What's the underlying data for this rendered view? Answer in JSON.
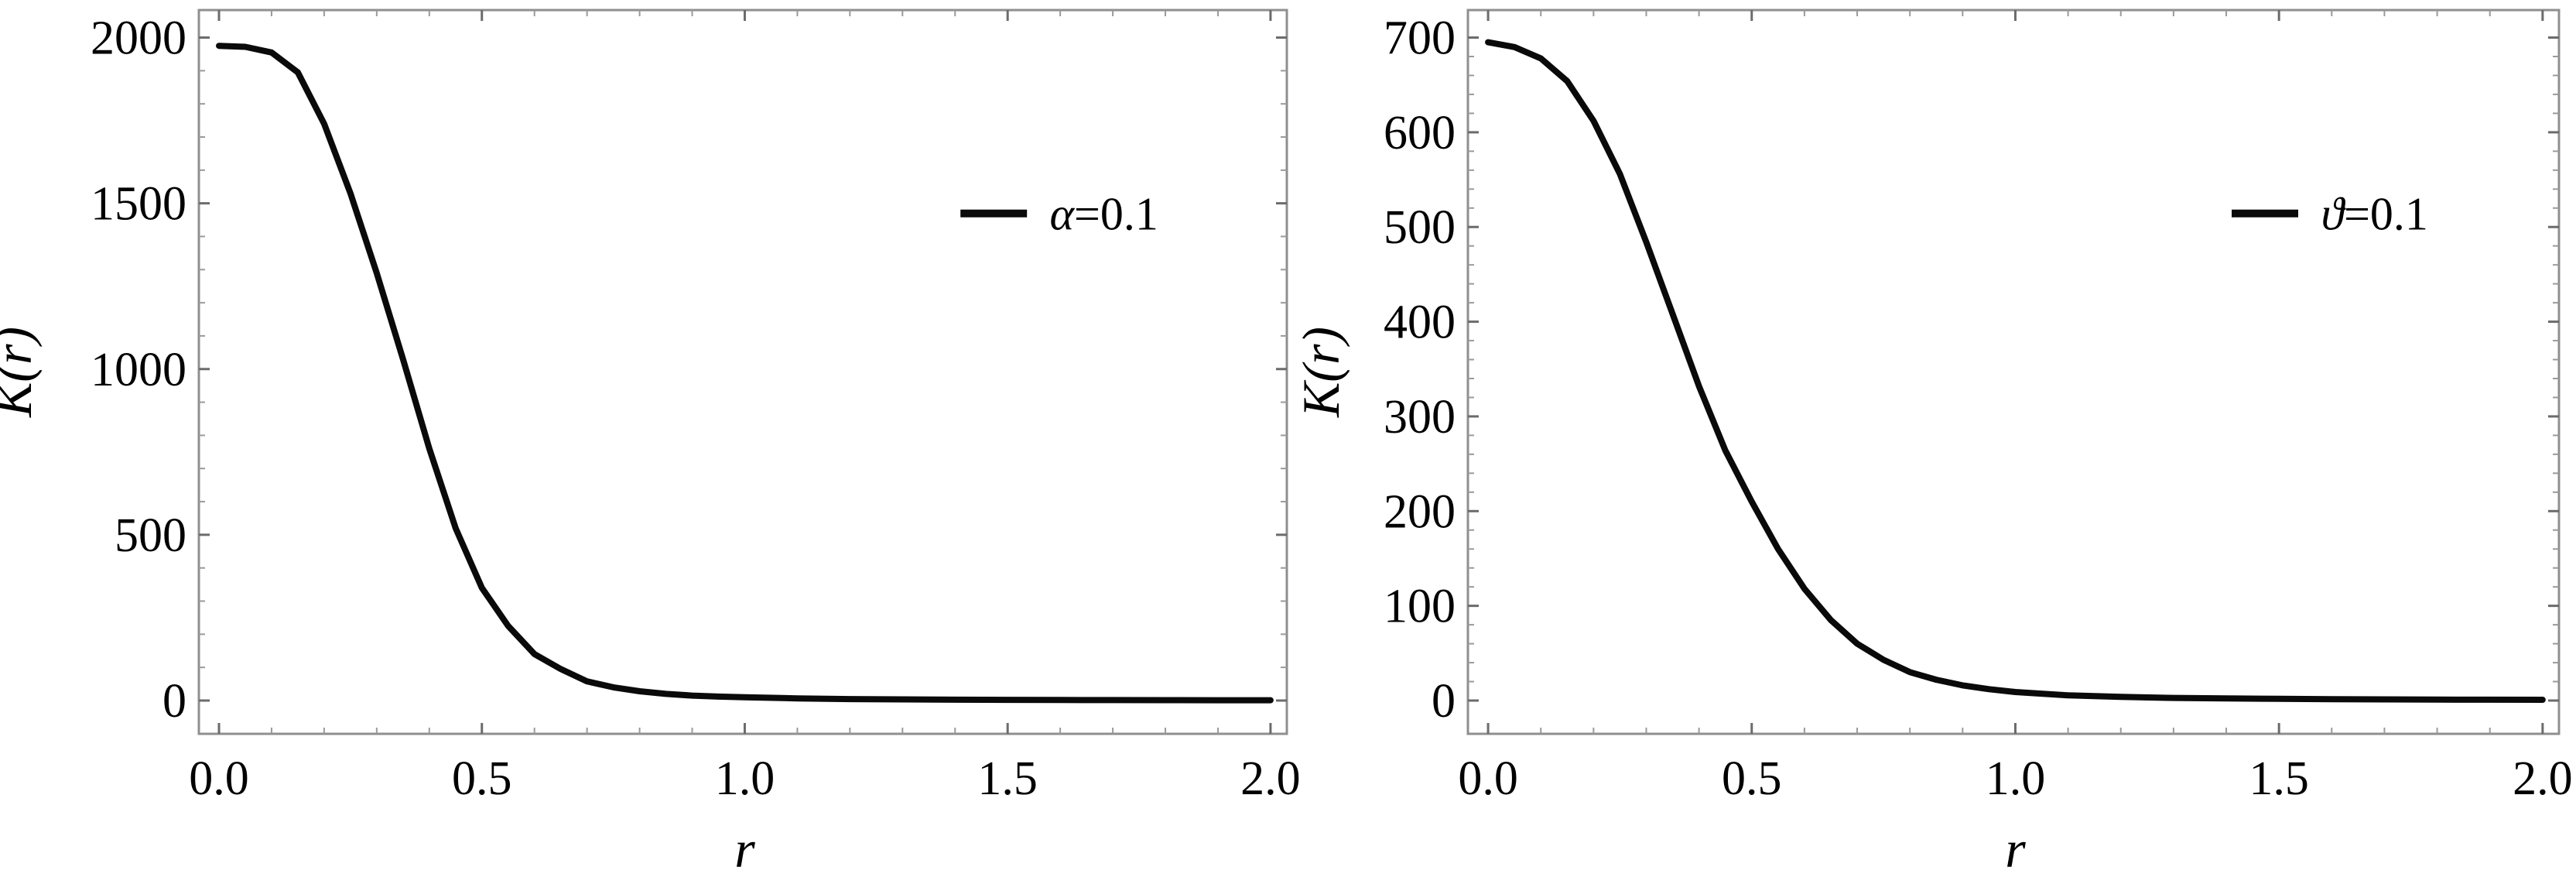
{
  "figure": {
    "background": "#ffffff",
    "description": "Two framed line plots of K(r) versus r"
  },
  "colors": {
    "curve": "#0a0a0a",
    "frame": "#8f8f8f",
    "major_tick": "#6b6b6b",
    "minor_tick": "#9a9a9a",
    "text": "#000000"
  },
  "chart_data": [
    {
      "type": "line",
      "title": "",
      "xlabel": "r",
      "ylabel": "K(r)",
      "xlim": [
        0,
        2
      ],
      "ylim": [
        0,
        2000
      ],
      "grid": false,
      "frame": true,
      "legend": {
        "label": "α=0.1",
        "position": "upper-right",
        "line_color": "#0a0a0a"
      },
      "xticks": {
        "values": [
          0,
          0.5,
          1.0,
          1.5,
          2.0
        ],
        "labels": [
          "0.0",
          "0.5",
          "1.0",
          "1.5",
          "2.0"
        ],
        "minor_step": 0.1
      },
      "yticks": {
        "values": [
          0,
          500,
          1000,
          1500,
          2000
        ],
        "labels": [
          "0",
          "500",
          "1000",
          "1500",
          "2000"
        ],
        "minor_step": 100
      },
      "series": [
        {
          "name": "α=0.1",
          "color": "#0a0a0a",
          "x": [
            0,
            0.05,
            0.1,
            0.15,
            0.2,
            0.25,
            0.3,
            0.35,
            0.4,
            0.45,
            0.5,
            0.55,
            0.6,
            0.65,
            0.7,
            0.75,
            0.8,
            0.85,
            0.9,
            0.95,
            1.0,
            1.1,
            1.2,
            1.3,
            1.4,
            1.5,
            1.6,
            1.7,
            1.8,
            1.9,
            2.0
          ],
          "y": [
            1975,
            1972,
            1955,
            1895,
            1740,
            1530,
            1290,
            1030,
            760,
            520,
            340,
            225,
            140,
            95,
            58,
            40,
            28,
            20,
            15,
            12,
            10,
            6.5,
            4.5,
            3.4,
            2.6,
            2.1,
            1.7,
            1.4,
            1.2,
            1.0,
            0.9
          ]
        }
      ]
    },
    {
      "type": "line",
      "title": "",
      "xlabel": "r",
      "ylabel": "K(r)",
      "xlim": [
        0,
        2
      ],
      "ylim": [
        0,
        700
      ],
      "grid": false,
      "frame": true,
      "legend": {
        "label": "ϑ=0.1",
        "position": "upper-right",
        "line_color": "#0a0a0a"
      },
      "xticks": {
        "values": [
          0,
          0.5,
          1.0,
          1.5,
          2.0
        ],
        "labels": [
          "0.0",
          "0.5",
          "1.0",
          "1.5",
          "2.0"
        ],
        "minor_step": 0.1
      },
      "yticks": {
        "values": [
          0,
          100,
          200,
          300,
          400,
          500,
          600,
          700
        ],
        "labels": [
          "0",
          "100",
          "200",
          "300",
          "400",
          "500",
          "600",
          "700"
        ],
        "minor_step": 20
      },
      "series": [
        {
          "name": "ϑ=0.1",
          "color": "#0a0a0a",
          "x": [
            0,
            0.05,
            0.1,
            0.15,
            0.2,
            0.25,
            0.3,
            0.35,
            0.4,
            0.45,
            0.5,
            0.55,
            0.6,
            0.65,
            0.7,
            0.75,
            0.8,
            0.85,
            0.9,
            0.95,
            1.0,
            1.1,
            1.2,
            1.3,
            1.4,
            1.5,
            1.6,
            1.7,
            1.8,
            1.9,
            2.0
          ],
          "y": [
            695,
            690,
            678,
            654,
            612,
            556,
            484,
            408,
            332,
            264,
            210,
            160,
            118,
            85,
            60,
            43,
            30,
            22,
            16,
            12,
            9,
            5.5,
            3.8,
            2.8,
            2.2,
            1.8,
            1.5,
            1.2,
            1.0,
            0.9,
            0.8
          ]
        }
      ]
    }
  ]
}
